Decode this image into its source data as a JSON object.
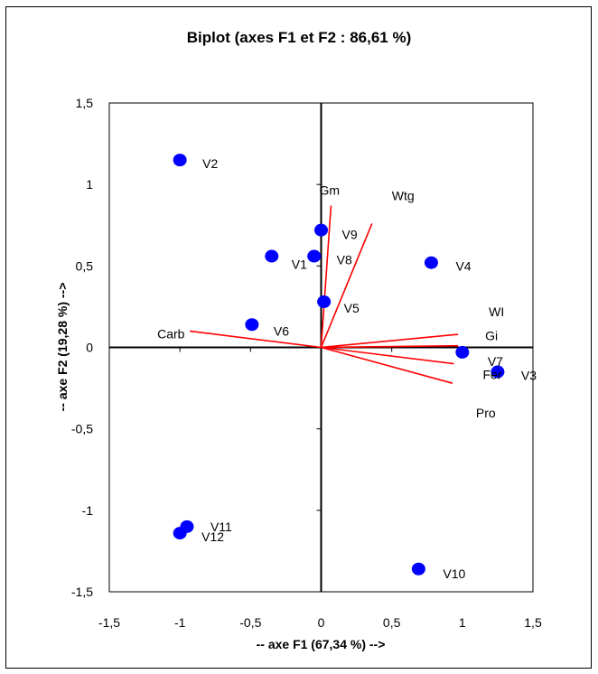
{
  "chart_data": {
    "type": "scatter",
    "title": "Biplot (axes F1 et F2 : 86,61 %)",
    "xlabel": "-- axe F1 (67,34 %) -->",
    "ylabel": "-- axe F2 (19,28 %) -->",
    "xlim": [
      -1.5,
      1.5
    ],
    "ylim": [
      -1.5,
      1.5
    ],
    "x_ticks": [
      "-1,5",
      "-1",
      "-0,5",
      "0",
      "0,5",
      "1",
      "1,5"
    ],
    "y_ticks": [
      "1,5",
      "1",
      "0,5",
      "0",
      "-0,5",
      "-1",
      "-1,5"
    ],
    "grid": false,
    "observation_color": "#0000ff",
    "vector_color": "#ff0000",
    "observations": [
      {
        "label": "V1",
        "x": -0.35,
        "y": 0.56
      },
      {
        "label": "V2",
        "x": -1.0,
        "y": 1.15
      },
      {
        "label": "V3",
        "x": 1.25,
        "y": -0.15
      },
      {
        "label": "V4",
        "x": 0.78,
        "y": 0.52
      },
      {
        "label": "V5",
        "x": 0.02,
        "y": 0.28
      },
      {
        "label": "V6",
        "x": -0.49,
        "y": 0.14
      },
      {
        "label": "V7",
        "x": 1.0,
        "y": -0.03
      },
      {
        "label": "V8",
        "x": -0.05,
        "y": 0.56
      },
      {
        "label": "V9",
        "x": 0.0,
        "y": 0.72
      },
      {
        "label": "V10",
        "x": 0.69,
        "y": -1.36
      },
      {
        "label": "V11",
        "x": -0.95,
        "y": -1.1
      },
      {
        "label": "V12",
        "x": -1.0,
        "y": -1.14
      }
    ],
    "variables": [
      {
        "label": "Gm",
        "x": 0.07,
        "y": 0.87
      },
      {
        "label": "Wtg",
        "x": 0.36,
        "y": 0.76
      },
      {
        "label": "WI",
        "x": 0.97,
        "y": 0.08
      },
      {
        "label": "Gi",
        "x": 0.97,
        "y": 0.01
      },
      {
        "label": "Fer",
        "x": 0.94,
        "y": -0.1
      },
      {
        "label": "Pro",
        "x": 0.93,
        "y": -0.22
      },
      {
        "label": "Carb",
        "x": -0.93,
        "y": 0.1
      }
    ]
  }
}
